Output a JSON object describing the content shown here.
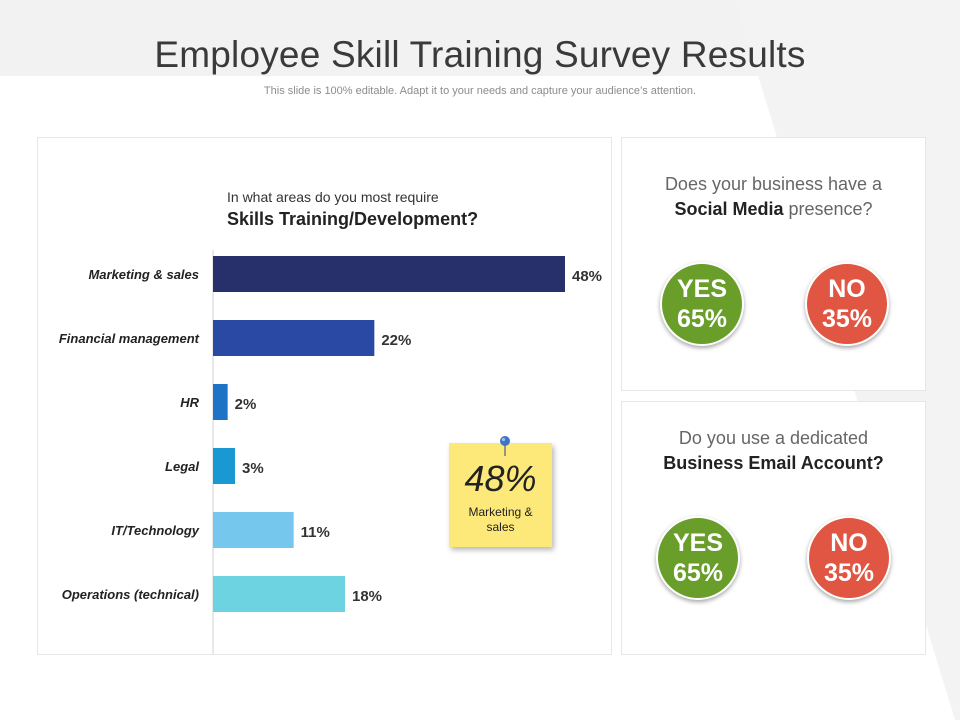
{
  "slide": {
    "title": "Employee Skill Training Survey Results",
    "subtitle": "This slide is 100% editable. Adapt it to your needs and capture your audience’s attention."
  },
  "chart": {
    "question_line1": "In what areas do you most require",
    "question_line2": "Skills Training/Development?"
  },
  "chart_data": {
    "type": "bar",
    "orientation": "horizontal",
    "categories": [
      "Marketing & sales",
      "Financial management",
      "HR",
      "Legal",
      "IT/Technology",
      "Operations (technical)"
    ],
    "values": [
      48,
      22,
      2,
      3,
      11,
      18
    ],
    "labels": [
      "48%",
      "22%",
      "2%",
      "3%",
      "11%",
      "18%"
    ],
    "colors": [
      "#28306b",
      "#2a49a5",
      "#1f73c6",
      "#1a98d2",
      "#76c7ee",
      "#6dd3e0"
    ],
    "xlim": [
      0,
      48
    ],
    "grid": false,
    "legend": "none"
  },
  "sticky_note": {
    "value": "48%",
    "label": "Marketing & sales",
    "color": "#fce97a"
  },
  "social_media": {
    "question_pre": "Does your business have a",
    "question_bold": "Social Media",
    "question_post": " presence?",
    "yes_label": "YES",
    "yes_value": "65%",
    "no_label": "NO",
    "no_value": "35%"
  },
  "business_email": {
    "question_line1": "Do you use a dedicated",
    "question_line2": "Business Email Account?",
    "yes_label": "YES",
    "yes_value": "65%",
    "no_label": "NO",
    "no_value": "35%"
  },
  "colors": {
    "yes": "#6a9e2a",
    "no": "#e05643"
  }
}
